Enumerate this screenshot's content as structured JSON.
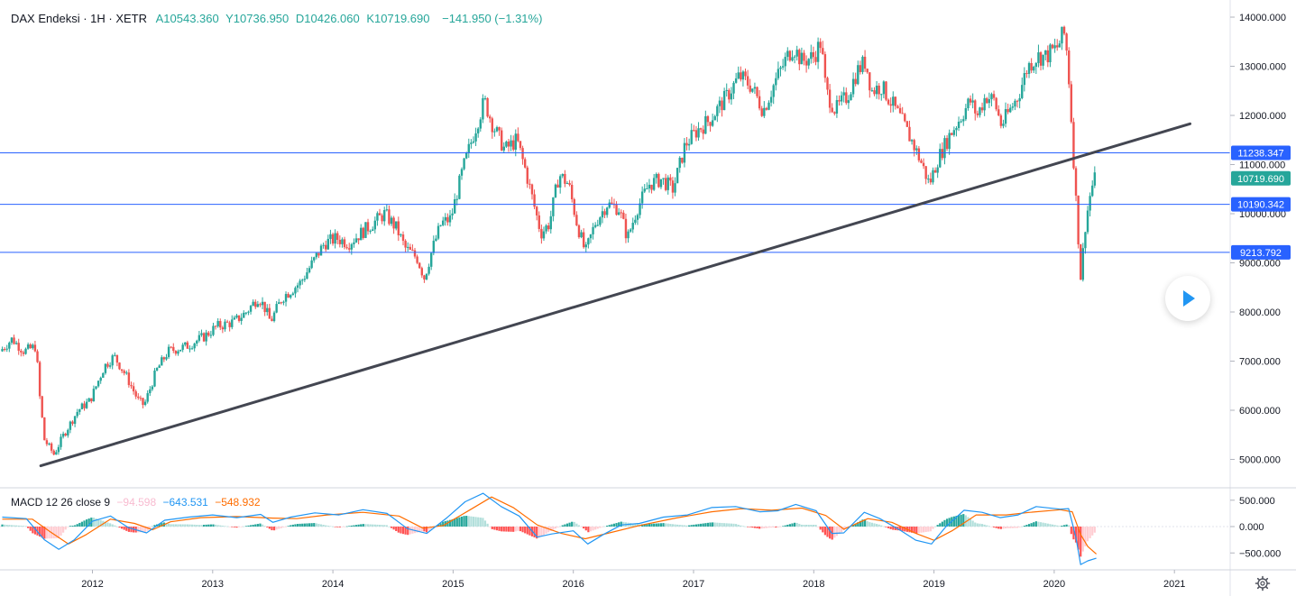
{
  "header": {
    "symbol": "DAX Endeksi · 1H · XETR",
    "open_label": "A10543.360",
    "high_label": "Y10736.950",
    "low_label": "D10426.060",
    "close_label": "K10719.690",
    "change": "−141.950 (−1.31%)"
  },
  "macd_legend": {
    "name": "MACD 12 26 close 9",
    "hist": "−94.598",
    "macd": "−643.531",
    "signal": "−548.932"
  },
  "colors": {
    "up": "#26a69a",
    "down": "#ef5350",
    "hline": "#2962ff",
    "trendline": "#434651",
    "macd": "#2196f3",
    "signal": "#ff6d00"
  },
  "chart_data": [
    {
      "type": "candlestick",
      "title": "DAX Endeksi · 1H · XETR",
      "ylim": [
        4600,
        14300
      ],
      "y_ticks": [
        "14000.000",
        "13000.000",
        "12000.000",
        "11000.000",
        "10000.000",
        "9000.000",
        "8000.000",
        "7000.000",
        "6000.000",
        "5000.000"
      ],
      "y_tick_values": [
        14000,
        13000,
        12000,
        11000,
        10000,
        9000,
        8000,
        7000,
        6000,
        5000
      ],
      "x_ticks": [
        "2012",
        "2013",
        "2014",
        "2015",
        "2016",
        "2017",
        "2018",
        "2019",
        "2020",
        "2021"
      ],
      "x_tick_years": [
        2012,
        2013,
        2014,
        2015,
        2016,
        2017,
        2018,
        2019,
        2020,
        2021
      ],
      "x_range_years": [
        2011.25,
        2021.5
      ],
      "price_path": [
        [
          2011.25,
          7200
        ],
        [
          2011.35,
          7450
        ],
        [
          2011.45,
          7200
        ],
        [
          2011.55,
          7300
        ],
        [
          2011.58,
          6300
        ],
        [
          2011.62,
          5400
        ],
        [
          2011.7,
          5100
        ],
        [
          2011.78,
          5500
        ],
        [
          2011.9,
          6000
        ],
        [
          2012.0,
          6200
        ],
        [
          2012.12,
          6900
        ],
        [
          2012.2,
          7100
        ],
        [
          2012.3,
          6700
        ],
        [
          2012.4,
          6200
        ],
        [
          2012.45,
          6100
        ],
        [
          2012.55,
          6800
        ],
        [
          2012.65,
          7200
        ],
        [
          2012.8,
          7300
        ],
        [
          2012.95,
          7500
        ],
        [
          2013.05,
          7700
        ],
        [
          2013.2,
          7800
        ],
        [
          2013.3,
          8000
        ],
        [
          2013.4,
          8300
        ],
        [
          2013.45,
          8100
        ],
        [
          2013.5,
          7800
        ],
        [
          2013.6,
          8300
        ],
        [
          2013.75,
          8600
        ],
        [
          2013.85,
          9000
        ],
        [
          2013.95,
          9400
        ],
        [
          2014.05,
          9500
        ],
        [
          2014.15,
          9400
        ],
        [
          2014.25,
          9600
        ],
        [
          2014.35,
          9800
        ],
        [
          2014.45,
          10000
        ],
        [
          2014.55,
          9700
        ],
        [
          2014.62,
          9300
        ],
        [
          2014.72,
          9100
        ],
        [
          2014.78,
          8700
        ],
        [
          2014.85,
          9300
        ],
        [
          2014.92,
          9800
        ],
        [
          2015.0,
          9900
        ],
        [
          2015.1,
          10900
        ],
        [
          2015.2,
          11700
        ],
        [
          2015.28,
          12300
        ],
        [
          2015.35,
          11800
        ],
        [
          2015.45,
          11300
        ],
        [
          2015.55,
          11500
        ],
        [
          2015.62,
          10900
        ],
        [
          2015.7,
          10100
        ],
        [
          2015.75,
          9600
        ],
        [
          2015.82,
          9800
        ],
        [
          2015.9,
          10800
        ],
        [
          2015.98,
          10600
        ],
        [
          2016.05,
          9800
        ],
        [
          2016.12,
          9200
        ],
        [
          2016.2,
          9800
        ],
        [
          2016.3,
          10200
        ],
        [
          2016.4,
          10100
        ],
        [
          2016.47,
          9500
        ],
        [
          2016.55,
          10100
        ],
        [
          2016.65,
          10600
        ],
        [
          2016.75,
          10700
        ],
        [
          2016.85,
          10500
        ],
        [
          2016.95,
          11400
        ],
        [
          2017.05,
          11700
        ],
        [
          2017.15,
          11900
        ],
        [
          2017.3,
          12400
        ],
        [
          2017.4,
          12800
        ],
        [
          2017.5,
          12600
        ],
        [
          2017.6,
          12100
        ],
        [
          2017.7,
          12700
        ],
        [
          2017.8,
          13200
        ],
        [
          2017.85,
          13400
        ],
        [
          2017.92,
          13100
        ],
        [
          2018.02,
          13200
        ],
        [
          2018.08,
          13500
        ],
        [
          2018.12,
          12500
        ],
        [
          2018.2,
          12100
        ],
        [
          2018.3,
          12400
        ],
        [
          2018.38,
          12900
        ],
        [
          2018.45,
          13100
        ],
        [
          2018.5,
          12500
        ],
        [
          2018.58,
          12600
        ],
        [
          2018.68,
          12200
        ],
        [
          2018.75,
          11900
        ],
        [
          2018.85,
          11400
        ],
        [
          2018.92,
          11000
        ],
        [
          2018.98,
          10600
        ],
        [
          2019.05,
          11100
        ],
        [
          2019.15,
          11600
        ],
        [
          2019.25,
          12000
        ],
        [
          2019.32,
          12300
        ],
        [
          2019.38,
          12000
        ],
        [
          2019.45,
          12400
        ],
        [
          2019.52,
          12300
        ],
        [
          2019.58,
          11800
        ],
        [
          2019.65,
          12100
        ],
        [
          2019.72,
          12400
        ],
        [
          2019.8,
          13000
        ],
        [
          2019.88,
          13200
        ],
        [
          2019.95,
          13200
        ],
        [
          2020.05,
          13400
        ],
        [
          2020.1,
          13700
        ],
        [
          2020.13,
          13200
        ],
        [
          2020.16,
          12000
        ],
        [
          2020.19,
          10700
        ],
        [
          2020.22,
          9500
        ],
        [
          2020.24,
          8700
        ],
        [
          2020.28,
          9800
        ],
        [
          2020.32,
          10400
        ],
        [
          2020.35,
          10700
        ]
      ],
      "horizontal_levels": [
        {
          "value": 11238.347,
          "label": "11238.347"
        },
        {
          "value": 10190.342,
          "label": "10190.342"
        },
        {
          "value": 9213.792,
          "label": "9213.792"
        }
      ],
      "last_price": {
        "value": 10719.69,
        "label": "10719.690"
      },
      "trendline": {
        "from": [
          2011.57,
          4870
        ],
        "to": [
          2021.13,
          11830
        ]
      }
    },
    {
      "type": "macd",
      "title": "MACD 12 26 close 9",
      "ylim": [
        -800,
        750
      ],
      "y_ticks": [
        "500.000",
        "0.000",
        "−500.000"
      ],
      "y_tick_values": [
        500,
        0,
        -500
      ],
      "macd_path": [
        [
          2011.25,
          180
        ],
        [
          2011.45,
          150
        ],
        [
          2011.6,
          -250
        ],
        [
          2011.72,
          -430
        ],
        [
          2011.85,
          -250
        ],
        [
          2012.0,
          100
        ],
        [
          2012.15,
          200
        ],
        [
          2012.3,
          -20
        ],
        [
          2012.45,
          -120
        ],
        [
          2012.6,
          120
        ],
        [
          2012.8,
          180
        ],
        [
          2013.0,
          220
        ],
        [
          2013.2,
          170
        ],
        [
          2013.4,
          230
        ],
        [
          2013.5,
          80
        ],
        [
          2013.65,
          180
        ],
        [
          2013.85,
          260
        ],
        [
          2014.05,
          220
        ],
        [
          2014.25,
          320
        ],
        [
          2014.45,
          250
        ],
        [
          2014.62,
          -40
        ],
        [
          2014.78,
          -130
        ],
        [
          2014.95,
          170
        ],
        [
          2015.1,
          470
        ],
        [
          2015.25,
          630
        ],
        [
          2015.4,
          380
        ],
        [
          2015.55,
          200
        ],
        [
          2015.7,
          -200
        ],
        [
          2015.82,
          -140
        ],
        [
          2016.0,
          -80
        ],
        [
          2016.12,
          -330
        ],
        [
          2016.25,
          -150
        ],
        [
          2016.4,
          30
        ],
        [
          2016.55,
          60
        ],
        [
          2016.75,
          180
        ],
        [
          2016.95,
          220
        ],
        [
          2017.15,
          360
        ],
        [
          2017.35,
          380
        ],
        [
          2017.55,
          280
        ],
        [
          2017.7,
          300
        ],
        [
          2017.85,
          420
        ],
        [
          2018.02,
          300
        ],
        [
          2018.15,
          -130
        ],
        [
          2018.25,
          -120
        ],
        [
          2018.42,
          270
        ],
        [
          2018.55,
          150
        ],
        [
          2018.72,
          -70
        ],
        [
          2018.85,
          -260
        ],
        [
          2018.98,
          -330
        ],
        [
          2019.1,
          0
        ],
        [
          2019.25,
          310
        ],
        [
          2019.4,
          270
        ],
        [
          2019.55,
          170
        ],
        [
          2019.7,
          220
        ],
        [
          2019.85,
          380
        ],
        [
          2020.05,
          330
        ],
        [
          2020.12,
          340
        ],
        [
          2020.18,
          -200
        ],
        [
          2020.22,
          -720
        ],
        [
          2020.28,
          -650
        ],
        [
          2020.35,
          -600
        ]
      ],
      "signal_path": [
        [
          2011.25,
          140
        ],
        [
          2011.5,
          140
        ],
        [
          2011.65,
          -100
        ],
        [
          2011.8,
          -330
        ],
        [
          2011.95,
          -150
        ],
        [
          2012.15,
          140
        ],
        [
          2012.35,
          60
        ],
        [
          2012.5,
          -60
        ],
        [
          2012.65,
          90
        ],
        [
          2012.9,
          170
        ],
        [
          2013.2,
          190
        ],
        [
          2013.5,
          160
        ],
        [
          2013.7,
          150
        ],
        [
          2013.95,
          220
        ],
        [
          2014.25,
          270
        ],
        [
          2014.55,
          200
        ],
        [
          2014.75,
          -30
        ],
        [
          2014.92,
          20
        ],
        [
          2015.15,
          330
        ],
        [
          2015.32,
          560
        ],
        [
          2015.5,
          360
        ],
        [
          2015.7,
          30
        ],
        [
          2015.9,
          -130
        ],
        [
          2016.1,
          -230
        ],
        [
          2016.3,
          -120
        ],
        [
          2016.55,
          20
        ],
        [
          2016.85,
          160
        ],
        [
          2017.15,
          280
        ],
        [
          2017.4,
          340
        ],
        [
          2017.65,
          310
        ],
        [
          2017.9,
          350
        ],
        [
          2018.1,
          210
        ],
        [
          2018.25,
          -50
        ],
        [
          2018.45,
          150
        ],
        [
          2018.65,
          80
        ],
        [
          2018.85,
          -130
        ],
        [
          2019.0,
          -260
        ],
        [
          2019.15,
          -80
        ],
        [
          2019.35,
          220
        ],
        [
          2019.6,
          220
        ],
        [
          2019.8,
          270
        ],
        [
          2020.05,
          320
        ],
        [
          2020.15,
          280
        ],
        [
          2020.22,
          -150
        ],
        [
          2020.28,
          -380
        ],
        [
          2020.35,
          -520
        ]
      ]
    }
  ]
}
